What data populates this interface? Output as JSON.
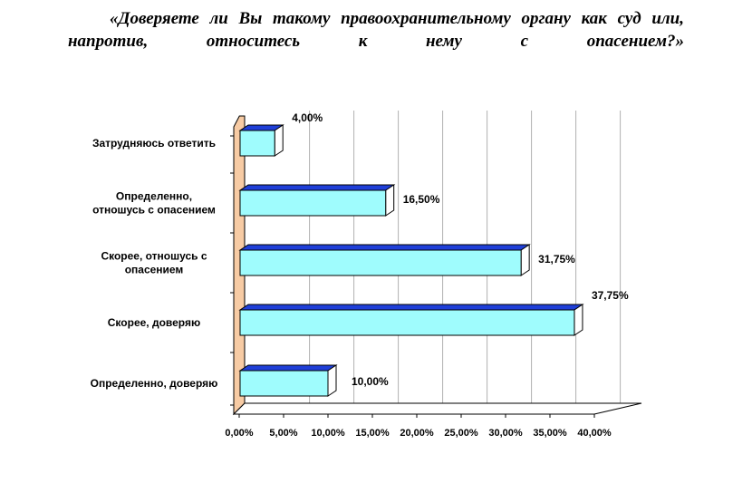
{
  "chart_data": {
    "type": "bar",
    "orientation": "horizontal",
    "title": "«Доверяете ли Вы такому правоохранительному органу как суд или, напротив, относитесь к нему с опасением?»",
    "categories": [
      "Затрудняюсь ответить",
      "Определенно, отношусь с опасением",
      "Скорее, отношусь с опасением",
      "Скорее, доверяю",
      "Определенно, доверяю"
    ],
    "values": [
      4.0,
      16.5,
      31.75,
      37.75,
      10.0
    ],
    "data_labels": [
      "4,00%",
      "16,50%",
      "31,75%",
      "37,75%",
      "10,00%"
    ],
    "xlim": [
      0,
      40
    ],
    "x_ticks": [
      "0,00%",
      "5,00%",
      "10,00%",
      "15,00%",
      "20,00%",
      "25,00%",
      "30,00%",
      "35,00%",
      "40,00%"
    ],
    "grid": true,
    "legend": "none",
    "colors": {
      "bar_face": "#9ffcfd",
      "bar_top": "#1f3fd8",
      "bar_side": "#ffffff",
      "wall": "#f7cba4",
      "floor": "#ffffff",
      "outline": "#000000"
    }
  }
}
